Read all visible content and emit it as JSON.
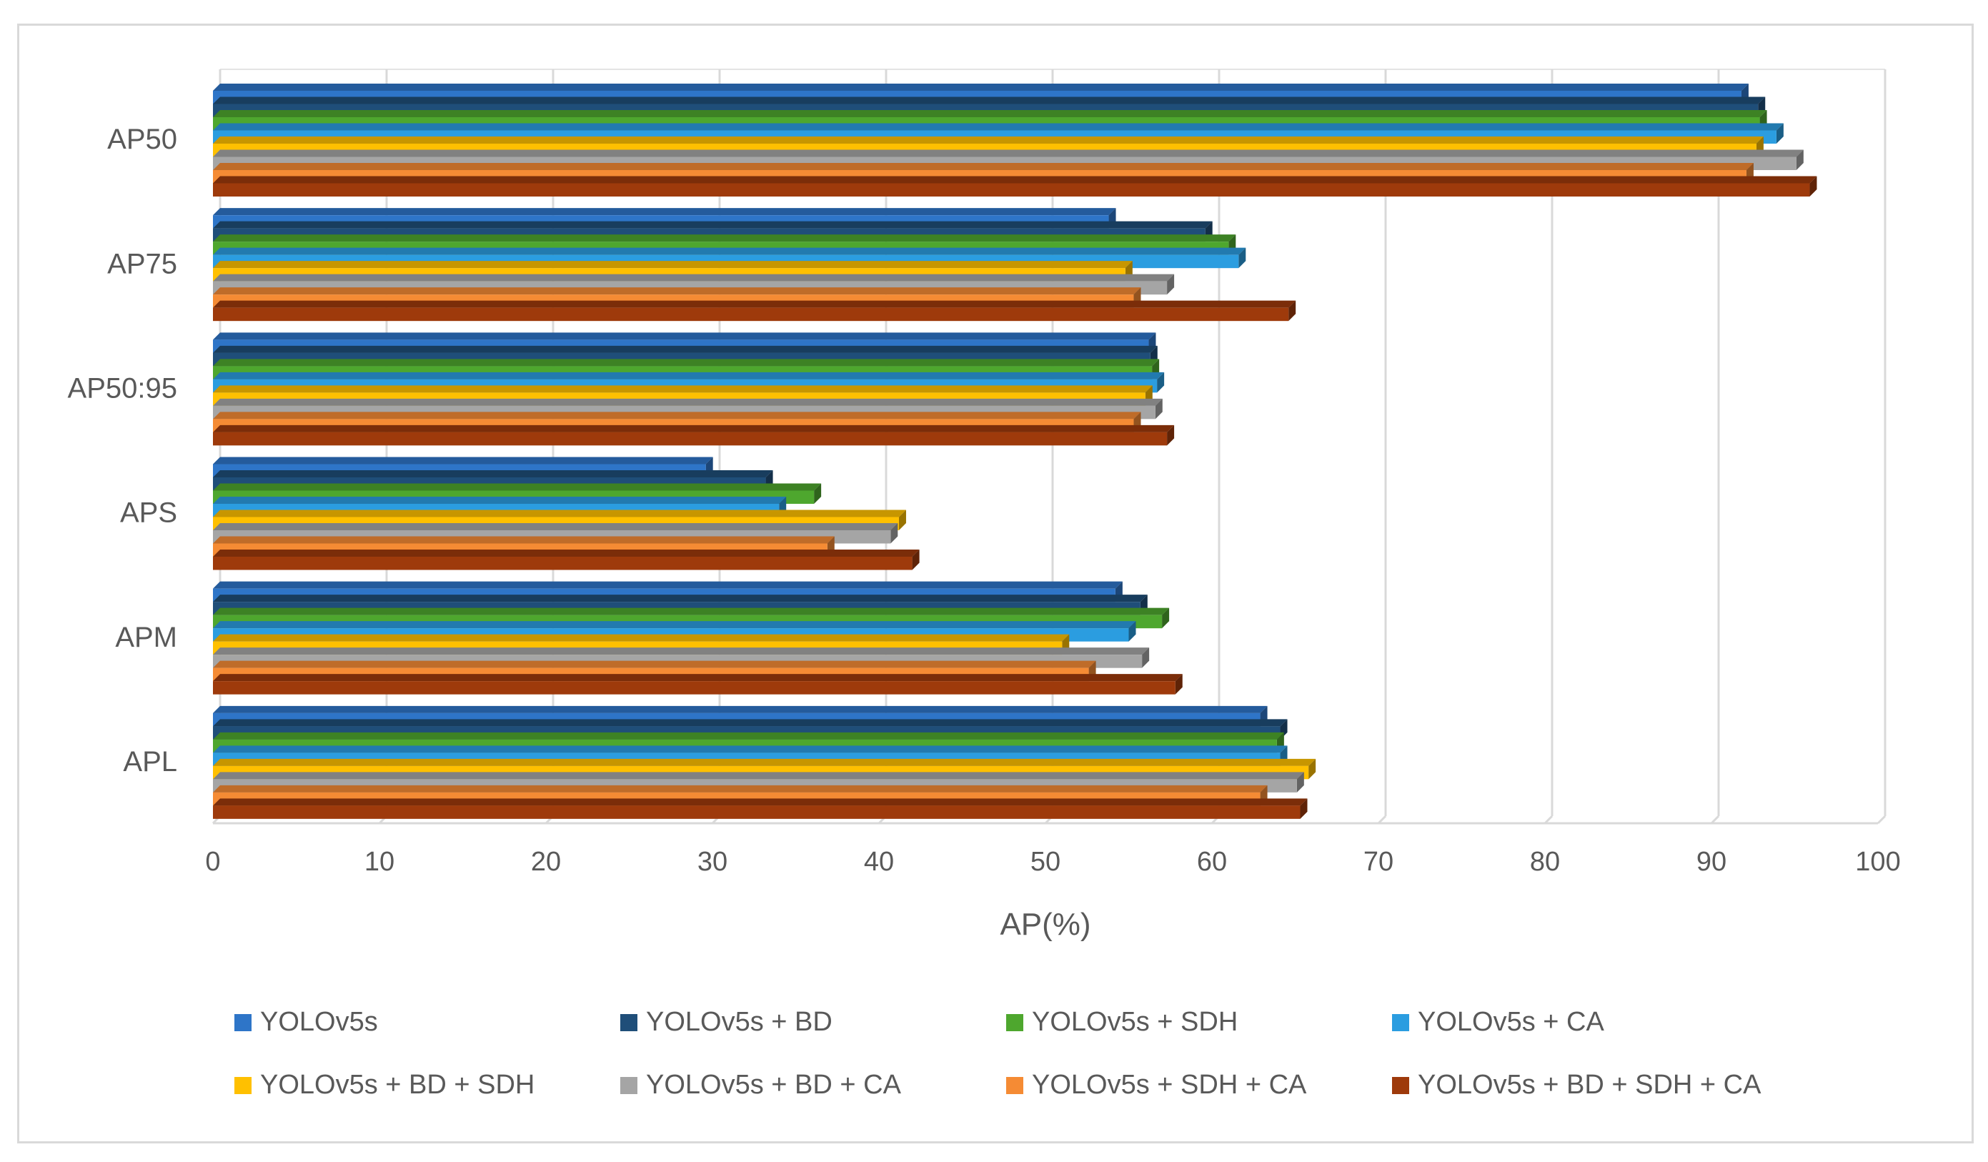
{
  "chart_data": {
    "type": "bar",
    "orientation": "horizontal",
    "title": "",
    "xlabel": "AP(%)",
    "ylabel": "",
    "xlim": [
      0,
      100
    ],
    "xticks": [
      "0",
      "10",
      "20",
      "30",
      "40",
      "50",
      "60",
      "70",
      "80",
      "90",
      "100"
    ],
    "grid": true,
    "legend_position": "bottom",
    "categories": [
      "AP50",
      "AP75",
      "AP50:95",
      "APS",
      "APM",
      "APL"
    ],
    "series": [
      {
        "name": "YOLOv5s",
        "color": "#2e75c8",
        "values": [
          91.8,
          53.8,
          56.2,
          29.6,
          54.2,
          62.9
        ]
      },
      {
        "name": "YOLOv5s + BD",
        "color": "#1f4e79",
        "values": [
          92.8,
          59.6,
          56.3,
          33.2,
          55.7,
          64.1
        ]
      },
      {
        "name": "YOLOv5s + SDH",
        "color": "#4ea72e",
        "values": [
          92.9,
          61.0,
          56.4,
          36.1,
          57.0,
          63.9
        ]
      },
      {
        "name": "YOLOv5s + CA",
        "color": "#2b9de0",
        "values": [
          93.9,
          61.6,
          56.7,
          34.0,
          55.0,
          64.1
        ]
      },
      {
        "name": "YOLOv5s + BD + SDH",
        "color": "#ffc000",
        "values": [
          92.7,
          54.8,
          56.0,
          41.2,
          51.0,
          65.8
        ]
      },
      {
        "name": "YOLOv5s + BD + CA",
        "color": "#a5a5a5",
        "values": [
          95.1,
          57.3,
          56.6,
          40.7,
          55.8,
          65.1
        ]
      },
      {
        "name": "YOLOv5s + SDH + CA",
        "color": "#f58b34",
        "values": [
          92.1,
          55.3,
          55.3,
          36.9,
          52.6,
          62.9
        ]
      },
      {
        "name": "YOLOv5s + BD + SDH + CA",
        "color": "#9e3a0b",
        "values": [
          95.9,
          64.6,
          57.3,
          42.0,
          57.8,
          65.3
        ]
      }
    ]
  }
}
